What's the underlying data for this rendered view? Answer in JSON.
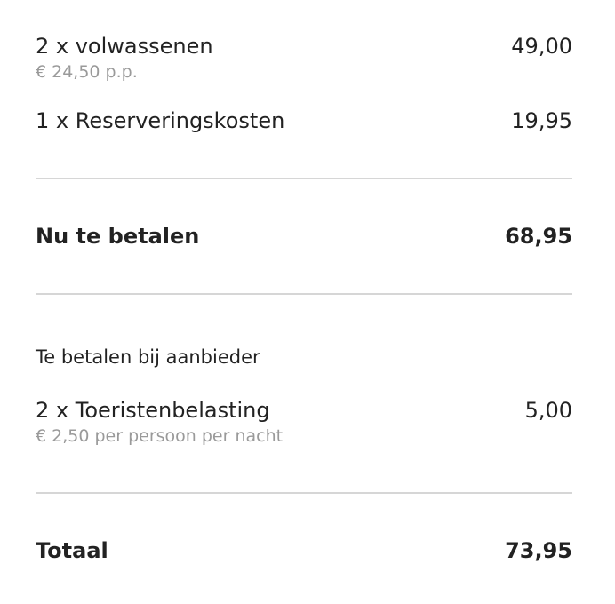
{
  "items": [
    {
      "label": "2 x volwassenen",
      "detail": "€ 24,50 p.p.",
      "amount": "49,00"
    },
    {
      "label": "1 x Reserveringskosten",
      "amount": "19,95"
    }
  ],
  "subtotal": {
    "label": "Nu te betalen",
    "amount": "68,95"
  },
  "provider": {
    "heading": "Te betalen bij aanbieder",
    "items": [
      {
        "label": "2 x Toeristenbelasting",
        "detail": "€ 2,50 per persoon per nacht",
        "amount": "5,00"
      }
    ]
  },
  "total": {
    "label": "Totaal",
    "amount": "73,95"
  }
}
